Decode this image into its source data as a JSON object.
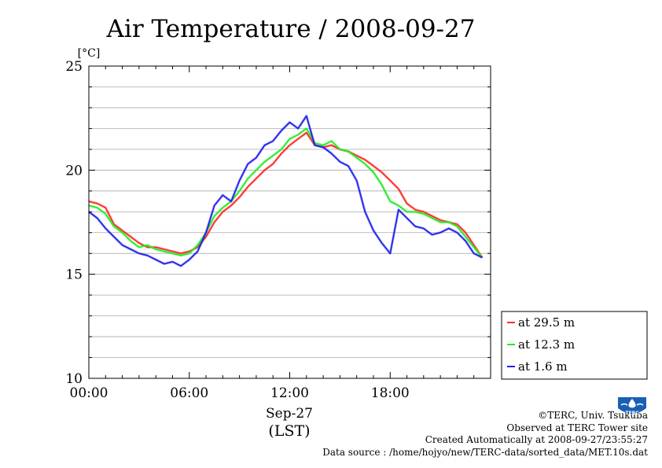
{
  "page": {
    "credit": "©TERC, Univ. Tsukuba",
    "site": "Observed at TERC Tower site",
    "created": "Created Automatically at 2008-09-27/23:55:27",
    "source": "Data source : /home/hojyo/new/TERC-data/sorted_data/MET.10s.dat",
    "logo_text": "TERC"
  },
  "chart_data": {
    "type": "line",
    "title": "Air Temperature / 2008-09-27",
    "ylabel": "[°C]",
    "xlabel": "(LST)",
    "xlabel_date": "Sep-27",
    "xlim": [
      0,
      24
    ],
    "ylim": [
      10,
      25
    ],
    "y_ticks": [
      10,
      15,
      20,
      25
    ],
    "y_tick_labels": [
      "10",
      "15",
      "20",
      "25"
    ],
    "x_ticks": [
      0,
      6,
      12,
      18
    ],
    "x_tick_labels": [
      "00:00",
      "06:00",
      "12:00",
      "18:00"
    ],
    "grid": "horizontal",
    "legend_position": "bottom-right outside",
    "x_hours": [
      0,
      0.5,
      1,
      1.5,
      2,
      2.5,
      3,
      3.5,
      4,
      4.5,
      5,
      5.5,
      6,
      6.5,
      7,
      7.5,
      8,
      8.5,
      9,
      9.5,
      10,
      10.5,
      11,
      11.5,
      12,
      12.5,
      13,
      13.5,
      14,
      14.5,
      15,
      15.5,
      16,
      16.5,
      17,
      17.5,
      18,
      18.5,
      19,
      19.5,
      20,
      20.5,
      21,
      21.5,
      22,
      22.5,
      23,
      23.5
    ],
    "series": [
      {
        "name": "at 29.5 m",
        "color": "#ff2a2a",
        "values": [
          18.5,
          18.4,
          18.2,
          17.4,
          17.1,
          16.8,
          16.5,
          16.3,
          16.3,
          16.2,
          16.1,
          16.0,
          16.1,
          16.3,
          16.8,
          17.5,
          18.0,
          18.3,
          18.7,
          19.2,
          19.6,
          20.0,
          20.3,
          20.8,
          21.2,
          21.5,
          21.8,
          21.2,
          21.1,
          21.2,
          21.0,
          20.9,
          20.7,
          20.5,
          20.2,
          19.9,
          19.5,
          19.1,
          18.4,
          18.1,
          18.0,
          17.8,
          17.6,
          17.5,
          17.4,
          17.0,
          16.4,
          15.8
        ]
      },
      {
        "name": "at 12.3 m",
        "color": "#22ee22",
        "values": [
          18.3,
          18.2,
          17.9,
          17.3,
          17.0,
          16.6,
          16.3,
          16.4,
          16.2,
          16.1,
          16.0,
          15.9,
          16.0,
          16.4,
          17.0,
          17.8,
          18.2,
          18.5,
          19.0,
          19.6,
          20.0,
          20.4,
          20.7,
          21.0,
          21.5,
          21.7,
          22.0,
          21.3,
          21.2,
          21.4,
          21.0,
          20.9,
          20.6,
          20.3,
          19.9,
          19.3,
          18.5,
          18.3,
          18.0,
          18.0,
          17.9,
          17.7,
          17.5,
          17.5,
          17.3,
          16.8,
          16.3,
          15.8
        ]
      },
      {
        "name": "at 1.6 m",
        "color": "#2222ee",
        "values": [
          18.0,
          17.7,
          17.2,
          16.8,
          16.4,
          16.2,
          16.0,
          15.9,
          15.7,
          15.5,
          15.6,
          15.4,
          15.7,
          16.1,
          17.0,
          18.3,
          18.8,
          18.5,
          19.5,
          20.3,
          20.6,
          21.2,
          21.4,
          21.9,
          22.3,
          22.0,
          22.6,
          21.2,
          21.1,
          20.8,
          20.4,
          20.2,
          19.5,
          18.0,
          17.1,
          16.5,
          16.0,
          18.1,
          17.7,
          17.3,
          17.2,
          16.9,
          17.0,
          17.2,
          17.0,
          16.6,
          16.0,
          15.8
        ]
      }
    ]
  }
}
